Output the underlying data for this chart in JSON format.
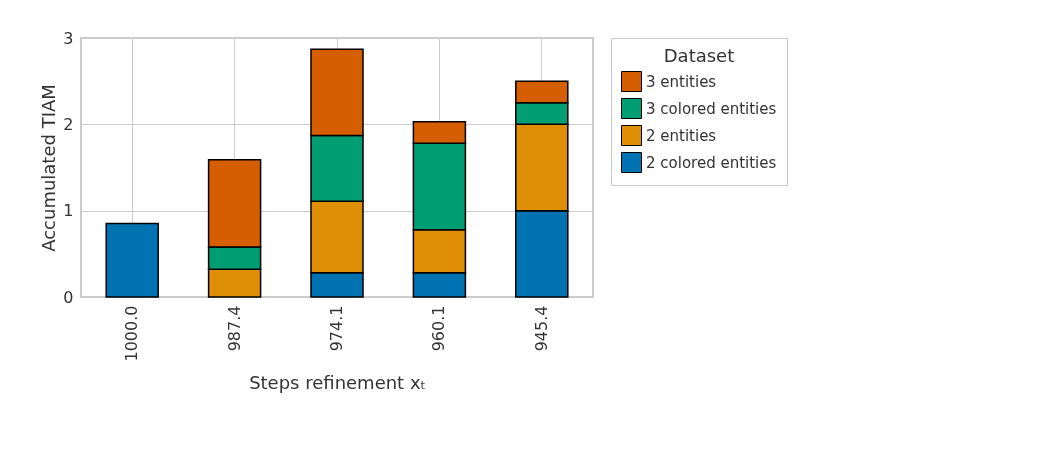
{
  "chart_data": {
    "type": "bar",
    "stacked": true,
    "categories": [
      "1000.0",
      "987.4",
      "974.1",
      "960.1",
      "945.4"
    ],
    "series": [
      {
        "name": "2 colored entities",
        "color": "#0173b2",
        "values": [
          0.85,
          null,
          0.28,
          0.28,
          1.0
        ]
      },
      {
        "name": "2 entities",
        "color": "#de8f05",
        "values": [
          null,
          0.32,
          0.83,
          0.5,
          1.0
        ]
      },
      {
        "name": "3 colored entities",
        "color": "#029e73",
        "values": [
          null,
          0.26,
          0.76,
          1.0,
          0.25
        ]
      },
      {
        "name": "3 entities",
        "color": "#d55e00",
        "values": [
          null,
          1.01,
          1.0,
          0.25,
          0.25
        ]
      }
    ],
    "xlabel": "Steps refinement xₜ",
    "ylabel": "Accumulated TIAM",
    "legend_title": "Dataset",
    "ylim": [
      0,
      3
    ],
    "yticks": [
      0,
      1,
      2,
      3
    ],
    "grid": true,
    "legend": "right"
  }
}
